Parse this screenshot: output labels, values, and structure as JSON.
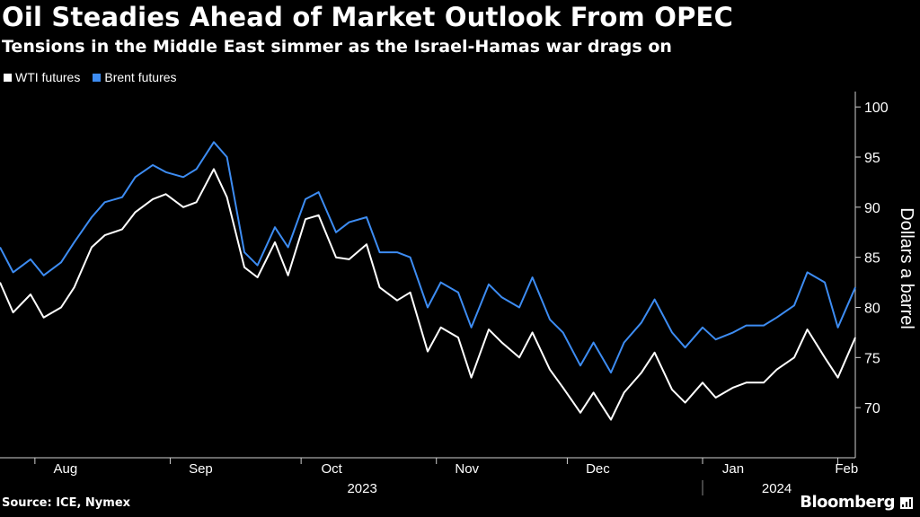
{
  "chart_data": {
    "type": "line",
    "title": "Oil Steadies Ahead of Market Outlook From OPEC",
    "subtitle": "Tensions in the Middle East simmer as the Israel-Hamas war drags on",
    "ylabel": "Dollars a barrel",
    "ylim": [
      65,
      101
    ],
    "y_ticks": [
      70,
      75,
      80,
      85,
      90,
      95,
      100
    ],
    "x_range": [
      "2023-07-24",
      "2024-02-05"
    ],
    "month_ticks": [
      {
        "label": "Aug",
        "date": "2023-08-08"
      },
      {
        "label": "Sep",
        "date": "2023-09-08"
      },
      {
        "label": "Oct",
        "date": "2023-10-08"
      },
      {
        "label": "Nov",
        "date": "2023-11-08"
      },
      {
        "label": "Dec",
        "date": "2023-12-08"
      },
      {
        "label": "Jan",
        "date": "2024-01-08"
      },
      {
        "label": "Feb",
        "date": "2024-02-03"
      }
    ],
    "year_labels": [
      {
        "label": "2023",
        "date": "2023-10-15"
      },
      {
        "label": "2024",
        "date": "2024-01-18"
      }
    ],
    "legend_position": "top-left",
    "grid": false,
    "series": [
      {
        "name": "WTI futures",
        "color": "#ffffff",
        "x": [
          "2023-07-24",
          "2023-07-27",
          "2023-07-31",
          "2023-08-03",
          "2023-08-07",
          "2023-08-10",
          "2023-08-14",
          "2023-08-17",
          "2023-08-21",
          "2023-08-24",
          "2023-08-28",
          "2023-08-31",
          "2023-09-04",
          "2023-09-07",
          "2023-09-11",
          "2023-09-14",
          "2023-09-18",
          "2023-09-21",
          "2023-09-25",
          "2023-09-28",
          "2023-10-02",
          "2023-10-05",
          "2023-10-09",
          "2023-10-12",
          "2023-10-16",
          "2023-10-19",
          "2023-10-23",
          "2023-10-26",
          "2023-10-30",
          "2023-11-02",
          "2023-11-06",
          "2023-11-09",
          "2023-11-13",
          "2023-11-16",
          "2023-11-20",
          "2023-11-23",
          "2023-11-27",
          "2023-11-30",
          "2023-12-04",
          "2023-12-07",
          "2023-12-11",
          "2023-12-14",
          "2023-12-18",
          "2023-12-21",
          "2023-12-25",
          "2023-12-28",
          "2024-01-01",
          "2024-01-04",
          "2024-01-08",
          "2024-01-11",
          "2024-01-15",
          "2024-01-18",
          "2024-01-22",
          "2024-01-25",
          "2024-01-29",
          "2024-02-01",
          "2024-02-05"
        ],
        "values": [
          82.5,
          79.5,
          81.3,
          79.0,
          80.0,
          82.0,
          86.0,
          87.2,
          87.8,
          89.5,
          90.8,
          91.3,
          90.0,
          90.5,
          93.8,
          91.0,
          84.0,
          83.0,
          86.5,
          83.2,
          88.8,
          89.2,
          85.0,
          84.8,
          86.3,
          82.0,
          80.7,
          81.5,
          75.6,
          78.0,
          77.0,
          73.0,
          77.8,
          76.5,
          75.0,
          77.5,
          73.8,
          72.0,
          69.5,
          71.5,
          68.8,
          71.5,
          73.5,
          75.5,
          71.8,
          70.5,
          72.5,
          71.0,
          72.0,
          72.5,
          72.5,
          73.8,
          75.0,
          77.8,
          75.0,
          73.0,
          77.0
        ]
      },
      {
        "name": "Brent futures",
        "color": "#3d8cf2",
        "x": [
          "2023-07-24",
          "2023-07-27",
          "2023-07-31",
          "2023-08-03",
          "2023-08-07",
          "2023-08-10",
          "2023-08-14",
          "2023-08-17",
          "2023-08-21",
          "2023-08-24",
          "2023-08-28",
          "2023-08-31",
          "2023-09-04",
          "2023-09-07",
          "2023-09-11",
          "2023-09-14",
          "2023-09-18",
          "2023-09-21",
          "2023-09-25",
          "2023-09-28",
          "2023-10-02",
          "2023-10-05",
          "2023-10-09",
          "2023-10-12",
          "2023-10-16",
          "2023-10-19",
          "2023-10-23",
          "2023-10-26",
          "2023-10-30",
          "2023-11-02",
          "2023-11-06",
          "2023-11-09",
          "2023-11-13",
          "2023-11-16",
          "2023-11-20",
          "2023-11-23",
          "2023-11-27",
          "2023-11-30",
          "2023-12-04",
          "2023-12-07",
          "2023-12-11",
          "2023-12-14",
          "2023-12-18",
          "2023-12-21",
          "2023-12-25",
          "2023-12-28",
          "2024-01-01",
          "2024-01-04",
          "2024-01-08",
          "2024-01-11",
          "2024-01-15",
          "2024-01-18",
          "2024-01-22",
          "2024-01-25",
          "2024-01-29",
          "2024-02-01",
          "2024-02-05"
        ],
        "values": [
          86.0,
          83.5,
          84.8,
          83.2,
          84.5,
          86.5,
          89.0,
          90.5,
          91.0,
          93.0,
          94.2,
          93.5,
          93.0,
          93.8,
          96.5,
          95.0,
          85.5,
          84.2,
          88.0,
          86.0,
          90.8,
          91.5,
          87.5,
          88.5,
          89.0,
          85.5,
          85.5,
          85.0,
          80.0,
          82.5,
          81.5,
          78.0,
          82.3,
          81.0,
          80.0,
          83.0,
          78.8,
          77.5,
          74.2,
          76.5,
          73.5,
          76.5,
          78.5,
          80.8,
          77.5,
          76.0,
          78.0,
          76.8,
          77.5,
          78.2,
          78.2,
          79.0,
          80.2,
          83.5,
          82.5,
          78.0,
          82.0
        ]
      }
    ]
  },
  "footer": {
    "source": "Source: ICE, Nymex",
    "brand": "Bloomberg"
  }
}
